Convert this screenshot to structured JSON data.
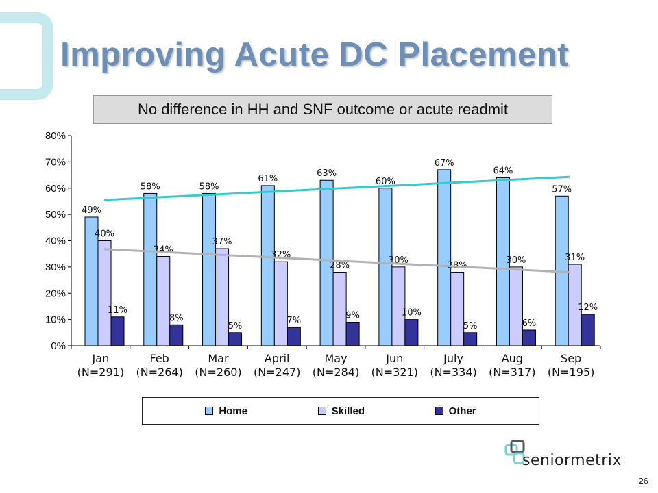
{
  "slide": {
    "title": "Improving Acute DC Placement",
    "subtitle": "No difference in HH and SNF outcome or acute readmit",
    "page_number": "26",
    "logo_text": "seniormetrix"
  },
  "colors": {
    "home": "#99ccff",
    "skilled": "#ccccff",
    "other": "#333399",
    "trend_home": "#33cccc",
    "trend_skilled": "#b2b2b2",
    "title": "#6f8eb4"
  },
  "chart_data": {
    "type": "bar",
    "categories": [
      "Jan\n(N=291)",
      "Feb\n(N=264)",
      "Mar\n(N=260)",
      "April\n(N=247)",
      "May\n(N=284)",
      "Jun\n(N=321)",
      "July\n(N=334)",
      "Aug\n(N=317)",
      "Sep\n(N=195)"
    ],
    "series": [
      {
        "name": "Home",
        "values": [
          49,
          58,
          58,
          61,
          63,
          60,
          67,
          64,
          57
        ],
        "labels": [
          "49%",
          "58%",
          "58%",
          "61%",
          "63%",
          "60%",
          "67%",
          "64%",
          "57%"
        ]
      },
      {
        "name": "Skilled",
        "values": [
          40,
          34,
          37,
          32,
          28,
          30,
          28,
          30,
          31
        ],
        "labels": [
          "40%",
          "34%",
          "37%",
          "32%",
          "28%",
          "30%",
          "28%",
          "30%",
          "31%"
        ]
      },
      {
        "name": "Other",
        "values": [
          11,
          8,
          5,
          7,
          9,
          10,
          5,
          6,
          12
        ],
        "labels": [
          "11%",
          "8%",
          "5%",
          "7%",
          "9%",
          "10%",
          "5%",
          "6%",
          "12%"
        ]
      }
    ],
    "trendlines": [
      {
        "series": "Home",
        "start": 55.5,
        "end": 64.3
      },
      {
        "series": "Skilled",
        "start": 36.8,
        "end": 28.0
      }
    ],
    "ylim": [
      0,
      80
    ],
    "yticks": [
      "0%",
      "10%",
      "20%",
      "30%",
      "40%",
      "50%",
      "60%",
      "70%",
      "80%"
    ],
    "xlabel": "",
    "ylabel": "",
    "legend": "bottom",
    "grid": false
  }
}
